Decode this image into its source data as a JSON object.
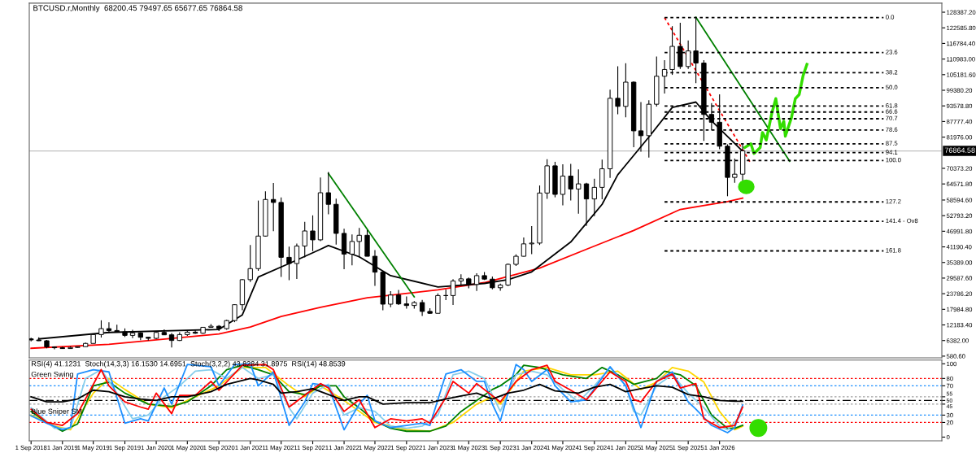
{
  "chart_data": [
    {
      "type": "candlestick",
      "title": "BTCUSD.r,Monthly  68200.45 79497.65 65677.65 76864.58",
      "x": [
        "2018-09",
        "2018-10",
        "2018-11",
        "2018-12",
        "2019-01",
        "2019-02",
        "2019-03",
        "2019-04",
        "2019-05",
        "2019-06",
        "2019-07",
        "2019-08",
        "2019-09",
        "2019-10",
        "2019-11",
        "2019-12",
        "2020-01",
        "2020-02",
        "2020-03",
        "2020-04",
        "2020-05",
        "2020-06",
        "2020-07",
        "2020-08",
        "2020-09",
        "2020-10",
        "2020-11",
        "2020-12",
        "2021-01",
        "2021-02",
        "2021-03",
        "2021-04",
        "2021-05",
        "2021-06",
        "2021-07",
        "2021-08",
        "2021-09",
        "2021-10",
        "2021-11",
        "2021-12",
        "2022-01",
        "2022-02",
        "2022-03",
        "2022-04",
        "2022-05",
        "2022-06",
        "2022-07",
        "2022-08",
        "2022-09",
        "2022-10",
        "2022-11",
        "2022-12",
        "2023-01",
        "2023-02",
        "2023-03",
        "2023-04",
        "2023-05",
        "2023-06",
        "2023-07",
        "2023-08",
        "2023-09",
        "2023-10",
        "2023-11",
        "2023-12",
        "2024-01",
        "2024-02",
        "2024-03",
        "2024-04",
        "2024-05",
        "2024-06",
        "2024-07",
        "2024-08",
        "2024-09",
        "2024-10",
        "2024-11",
        "2024-12",
        "2025-01",
        "2025-02",
        "2025-03",
        "2025-04",
        "2025-05",
        "2025-06",
        "2025-07",
        "2025-08",
        "2025-09",
        "2025-10",
        "2025-11",
        "2025-12",
        "2026-01",
        "2026-02",
        "2026-03",
        "2026-04"
      ],
      "ohlc": [
        [
          7000,
          7400,
          6100,
          6600
        ],
        [
          6600,
          7600,
          6200,
          6300
        ],
        [
          6300,
          6600,
          3500,
          4000
        ],
        [
          4000,
          4200,
          3100,
          3700
        ],
        [
          3700,
          4100,
          3300,
          3400
        ],
        [
          3400,
          4200,
          3400,
          3800
        ],
        [
          3800,
          4100,
          3700,
          4100
        ],
        [
          4100,
          5600,
          4100,
          5300
        ],
        [
          5300,
          9000,
          5300,
          8600
        ],
        [
          8600,
          13900,
          7500,
          10800
        ],
        [
          10800,
          13200,
          9100,
          10100
        ],
        [
          10100,
          12300,
          9300,
          9600
        ],
        [
          9600,
          10900,
          7700,
          8300
        ],
        [
          8300,
          10400,
          7300,
          9200
        ],
        [
          9200,
          9500,
          6500,
          7600
        ],
        [
          7600,
          7700,
          6400,
          7200
        ],
        [
          7200,
          9600,
          6900,
          9400
        ],
        [
          9400,
          10500,
          8400,
          8500
        ],
        [
          8500,
          9200,
          3800,
          6400
        ],
        [
          6400,
          9500,
          6200,
          8600
        ],
        [
          8600,
          10100,
          8100,
          9500
        ],
        [
          9500,
          10400,
          8900,
          9100
        ],
        [
          9100,
          11400,
          8900,
          11300
        ],
        [
          11300,
          12500,
          11100,
          11700
        ],
        [
          11700,
          12100,
          9900,
          10800
        ],
        [
          10800,
          14100,
          10400,
          13800
        ],
        [
          13800,
          19900,
          13200,
          19700
        ],
        [
          19700,
          29300,
          17600,
          29000
        ],
        [
          29000,
          41900,
          28100,
          33100
        ],
        [
          33100,
          58400,
          32300,
          45200
        ],
        [
          45200,
          61800,
          45000,
          58800
        ],
        [
          58800,
          64900,
          47000,
          57700
        ],
        [
          57700,
          59600,
          30000,
          37300
        ],
        [
          37300,
          41300,
          28800,
          35000
        ],
        [
          35000,
          42400,
          29300,
          41500
        ],
        [
          41500,
          50500,
          37300,
          47100
        ],
        [
          47100,
          52900,
          39600,
          43800
        ],
        [
          43800,
          67000,
          43300,
          61300
        ],
        [
          61300,
          69000,
          53300,
          57000
        ],
        [
          57000,
          59100,
          42000,
          46200
        ],
        [
          46200,
          47900,
          32900,
          38500
        ],
        [
          38500,
          45800,
          34300,
          43200
        ],
        [
          43200,
          48200,
          37200,
          45500
        ],
        [
          45500,
          47400,
          37700,
          37700
        ],
        [
          37700,
          40000,
          26700,
          31800
        ],
        [
          31800,
          31900,
          17600,
          19900
        ],
        [
          19900,
          24700,
          18800,
          23300
        ],
        [
          23300,
          25200,
          19600,
          20000
        ],
        [
          20000,
          22800,
          18200,
          19400
        ],
        [
          19400,
          21000,
          18200,
          20500
        ],
        [
          20500,
          21500,
          15500,
          17200
        ],
        [
          17200,
          18400,
          16300,
          16500
        ],
        [
          16500,
          23900,
          16500,
          23100
        ],
        [
          23100,
          25300,
          21400,
          23100
        ],
        [
          23100,
          29200,
          19600,
          28500
        ],
        [
          28500,
          31000,
          26900,
          29300
        ],
        [
          29300,
          29800,
          25800,
          27200
        ],
        [
          27200,
          31400,
          24800,
          30500
        ],
        [
          30500,
          31800,
          28900,
          29200
        ],
        [
          29200,
          30200,
          25400,
          26000
        ],
        [
          26000,
          27500,
          24900,
          27000
        ],
        [
          27000,
          35000,
          26600,
          34700
        ],
        [
          34700,
          38400,
          34100,
          37700
        ],
        [
          37700,
          44700,
          37600,
          42300
        ],
        [
          42300,
          48900,
          38500,
          42600
        ],
        [
          42600,
          64000,
          41900,
          61200
        ],
        [
          61200,
          73800,
          59000,
          71300
        ],
        [
          71300,
          72800,
          59600,
          60700
        ],
        [
          60700,
          71900,
          56600,
          67500
        ],
        [
          67500,
          72000,
          58400,
          62700
        ],
        [
          62700,
          70000,
          53500,
          64600
        ],
        [
          64600,
          65000,
          49000,
          59000
        ],
        [
          59000,
          66500,
          52600,
          63300
        ],
        [
          63300,
          73600,
          58900,
          70200
        ],
        [
          70200,
          99600,
          66800,
          96400
        ],
        [
          96400,
          108300,
          90500,
          93400
        ],
        [
          93400,
          109400,
          89300,
          102400
        ],
        [
          102400,
          102700,
          78200,
          84300
        ],
        [
          84300,
          95000,
          76600,
          82500
        ],
        [
          82500,
          95700,
          74400,
          94200
        ],
        [
          94200,
          111900,
          93300,
          104600
        ],
        [
          104600,
          110600,
          98200,
          107100
        ],
        [
          107100,
          123200,
          105100,
          115700
        ],
        [
          115700,
          124500,
          107300,
          108200
        ],
        [
          108200,
          117900,
          107300,
          114000
        ],
        [
          114000,
          126200,
          102000,
          109500
        ],
        [
          109500,
          110600,
          80600,
          90400
        ],
        [
          90400,
          94600,
          84500,
          87500
        ],
        [
          87500,
          97900,
          77500,
          78600
        ],
        [
          78600,
          79300,
          60000,
          67000
        ],
        [
          67000,
          74000,
          65000,
          68200
        ],
        [
          68200.45,
          79497.65,
          65677.65,
          76864.58
        ]
      ],
      "series": [
        {
          "type": "line",
          "color": "#ff0000",
          "line_style": "solid",
          "x": [
            "2018-09",
            "2019-07",
            "2020-09",
            "2021-01",
            "2021-05",
            "2021-10",
            "2022-04",
            "2023-01",
            "2023-07",
            "2024-02",
            "2024-08",
            "2025-02",
            "2025-08",
            "2026-02",
            "2026-04"
          ],
          "values": [
            3500,
            5000,
            8800,
            11400,
            15300,
            18700,
            22300,
            25200,
            27900,
            33300,
            40300,
            47300,
            55100,
            58000,
            59300
          ]
        },
        {
          "type": "line",
          "color": "#000000",
          "line_style": "solid",
          "x": [
            "2018-10",
            "2019-07",
            "2020-09",
            "2020-12",
            "2021-02",
            "2021-06",
            "2021-10",
            "2021-11",
            "2022-03",
            "2022-07",
            "2023-01",
            "2023-07",
            "2023-10",
            "2024-01",
            "2024-06",
            "2024-10",
            "2024-12",
            "2025-04",
            "2025-07",
            "2025-10",
            "2025-12",
            "2026-04"
          ],
          "values": [
            7000,
            9400,
            10500,
            15900,
            30000,
            35000,
            40300,
            41700,
            37500,
            30500,
            26300,
            27600,
            29000,
            31900,
            43000,
            57000,
            68000,
            82000,
            93000,
            95000,
            88000,
            76700
          ]
        },
        {
          "type": "line",
          "color": "#008000",
          "line_style": "solid",
          "x": [
            "2021-11",
            "2022-10"
          ],
          "values": [
            68500,
            22600
          ]
        },
        {
          "type": "line",
          "color": "#008000",
          "line_style": "solid",
          "x": [
            "2025-10",
            "2026-10"
          ],
          "values": [
            126500,
            73000
          ]
        },
        {
          "type": "line",
          "color": "#ff0000",
          "line_style": "dotted",
          "x": [
            "2025-06",
            "2026-05"
          ],
          "values": [
            126400,
            72500
          ]
        },
        {
          "type": "line",
          "color": "#33dd00",
          "line_style": "solid",
          "x": [
            "2026-04-09",
            "2026-05-03",
            "2026-05-15",
            "2026-06-08",
            "2026-06-17",
            "2026-07-02",
            "2026-07-23",
            "2026-08-08",
            "2026-08-17",
            "2026-08-26",
            "2026-09-08",
            "2026-09-14",
            "2026-10-08",
            "2026-10-23",
            "2026-11-07",
            "2026-11-22",
            "2026-12-07"
          ],
          "values": [
            78100,
            79500,
            75900,
            78100,
            83700,
            80900,
            90700,
            96300,
            90700,
            85100,
            87900,
            82300,
            89300,
            96300,
            97800,
            104800,
            109000
          ]
        },
        {
          "type": "line",
          "name": "0.0",
          "color": "#000000",
          "line_style": "dotted",
          "x": [
            "2025-06",
            "2027-10"
          ],
          "values": [
            126400,
            126400
          ]
        },
        {
          "type": "line",
          "name": "23.6",
          "color": "#000000",
          "line_style": "dotted",
          "x": [
            "2025-06",
            "2027-10"
          ],
          "values": [
            113400,
            113400
          ]
        },
        {
          "type": "line",
          "name": "38.2",
          "color": "#000000",
          "line_style": "dotted",
          "x": [
            "2025-06",
            "2027-10"
          ],
          "values": [
            105900,
            105900
          ]
        },
        {
          "type": "line",
          "name": "50.0",
          "color": "#000000",
          "line_style": "dotted",
          "x": [
            "2025-06",
            "2027-10"
          ],
          "values": [
            100300,
            100300
          ]
        },
        {
          "type": "line",
          "name": "61.8",
          "color": "#000000",
          "line_style": "dotted",
          "x": [
            "2025-06",
            "2027-10"
          ],
          "values": [
            93500,
            93500
          ]
        },
        {
          "type": "line",
          "name": "66.6",
          "color": "#000000",
          "line_style": "dotted",
          "x": [
            "2025-06",
            "2027-10"
          ],
          "values": [
            91300,
            91300
          ]
        },
        {
          "type": "line",
          "name": "70.7",
          "color": "#000000",
          "line_style": "dotted",
          "x": [
            "2025-06",
            "2027-10"
          ],
          "values": [
            88800,
            88800
          ]
        },
        {
          "type": "line",
          "name": "78.6",
          "color": "#000000",
          "line_style": "dotted",
          "x": [
            "2025-06",
            "2027-10"
          ],
          "values": [
            84600,
            84600
          ]
        },
        {
          "type": "line",
          "name": "87.5",
          "color": "#000000",
          "line_style": "dotted",
          "x": [
            "2025-06",
            "2027-10"
          ],
          "values": [
            79500,
            79500
          ]
        },
        {
          "type": "line",
          "name": "94.1",
          "color": "#000000",
          "line_style": "dotted",
          "x": [
            "2025-06",
            "2027-10"
          ],
          "values": [
            76200,
            76200
          ]
        },
        {
          "type": "line",
          "name": "100.0",
          "color": "#000000",
          "line_style": "dotted",
          "x": [
            "2025-06",
            "2027-10"
          ],
          "values": [
            73300,
            73300
          ]
        },
        {
          "type": "line",
          "name": "127.2",
          "color": "#000000",
          "line_style": "dotted",
          "x": [
            "2025-06",
            "2027-10"
          ],
          "values": [
            57900,
            57900
          ]
        },
        {
          "type": "line",
          "name": "141.4 - Ov8",
          "color": "#000000",
          "line_style": "dotted",
          "x": [
            "2025-06",
            "2027-10"
          ],
          "values": [
            50700,
            50700
          ]
        },
        {
          "type": "line",
          "name": "161.8",
          "color": "#000000",
          "line_style": "dotted",
          "x": [
            "2025-06",
            "2027-10"
          ],
          "values": [
            39700,
            39700
          ]
        }
      ],
      "ref_lines": [
        {
          "axis": "y",
          "value": 76864.58,
          "label": "76864.58",
          "color": "#c0c0c0",
          "line_style": "solid"
        }
      ],
      "xlim": [
        "2018-08-25",
        "2028-05-15"
      ],
      "ylim": [
        -60,
        131750
      ],
      "yticks": [
        {
          "value": 580.6,
          "label": "580.60"
        },
        {
          "value": 6382.0,
          "label": "6382.00"
        },
        {
          "value": 12183.4,
          "label": "12183.40"
        },
        {
          "value": 17984.8,
          "label": "17984.80"
        },
        {
          "value": 23786.2,
          "label": "23786.20"
        },
        {
          "value": 29587.6,
          "label": "29587.60"
        },
        {
          "value": 35389.0,
          "label": "35389.00"
        },
        {
          "value": 41190.4,
          "label": "41190.40"
        },
        {
          "value": 46991.8,
          "label": "46991.80"
        },
        {
          "value": 52793.2,
          "label": "52793.20"
        },
        {
          "value": 58594.6,
          "label": "58594.60"
        },
        {
          "value": 64571.8,
          "label": "64571.80"
        },
        {
          "value": 70373.2,
          "label": "70373.20"
        },
        {
          "value": 81976.0,
          "label": "81976.00"
        },
        {
          "value": 87777.4,
          "label": "87777.40"
        },
        {
          "value": 93578.8,
          "label": "93578.80"
        },
        {
          "value": 99380.2,
          "label": "99380.20"
        },
        {
          "value": 105181.6,
          "label": "105181.60"
        },
        {
          "value": 110983.0,
          "label": "110983.00"
        },
        {
          "value": 116784.4,
          "label": "116784.40"
        },
        {
          "value": 122585.8,
          "label": "122585.80"
        },
        {
          "value": 128387.2,
          "label": "128387.20"
        }
      ],
      "tick_labels": "y",
      "grid": false
    },
    {
      "type": "line",
      "annotations": [
        "RSI(4) 41.1231  Stoch(14,3,3) 16.1530 14.6951  Stoch(3,2,2) 43.8284 31.8975  RSI(14) 48.8539",
        "Green Swing",
        "Blue Sniper SM"
      ],
      "series": [
        {
          "color": "#ffd700",
          "x": [
            "2018-09",
            "2018-12",
            "2019-02",
            "2019-05",
            "2019-07",
            "2019-09",
            "2019-12",
            "2020-03",
            "2020-06",
            "2020-09",
            "2020-12",
            "2021-03",
            "2021-06",
            "2021-08",
            "2021-10",
            "2022-01",
            "2022-05",
            "2022-09",
            "2022-12",
            "2023-03",
            "2023-06",
            "2023-08",
            "2023-09",
            "2023-12",
            "2024-03",
            "2024-06",
            "2024-09",
            "2024-12",
            "2025-03",
            "2025-05",
            "2025-07",
            "2025-09",
            "2025-11",
            "2026-01",
            "2026-03",
            "2026-04"
          ],
          "values": [
            30,
            15,
            10,
            60,
            80,
            65,
            45,
            40,
            55,
            70,
            95,
            95,
            70,
            55,
            70,
            50,
            20,
            10,
            8,
            20,
            45,
            55,
            45,
            90,
            95,
            85,
            85,
            90,
            65,
            75,
            95,
            90,
            75,
            35,
            10,
            15
          ]
        },
        {
          "color": "#008000",
          "x": [
            "2018-09",
            "2018-11",
            "2019-01",
            "2019-03",
            "2019-05",
            "2019-07",
            "2019-09",
            "2019-12",
            "2020-03",
            "2020-05",
            "2020-08",
            "2020-10",
            "2020-12",
            "2021-02",
            "2021-04",
            "2021-06",
            "2021-08",
            "2021-10",
            "2021-12",
            "2022-01",
            "2022-03",
            "2022-05",
            "2022-07",
            "2022-09",
            "2022-12",
            "2023-02",
            "2023-04",
            "2023-06",
            "2023-08",
            "2023-09",
            "2023-11",
            "2023-12",
            "2024-02",
            "2024-05",
            "2024-08",
            "2024-10",
            "2024-12",
            "2025-02",
            "2025-05",
            "2025-06",
            "2025-08",
            "2025-10",
            "2025-12",
            "2026-02",
            "2026-03",
            "2026-04"
          ],
          "values": [
            35,
            20,
            8,
            18,
            70,
            75,
            60,
            45,
            42,
            48,
            70,
            92,
            98,
            92,
            85,
            62,
            58,
            70,
            70,
            55,
            40,
            22,
            12,
            8,
            8,
            15,
            35,
            50,
            65,
            70,
            85,
            98,
            95,
            85,
            80,
            95,
            85,
            72,
            80,
            90,
            85,
            70,
            30,
            12,
            12,
            16
          ]
        },
        {
          "color": "#87ceeb",
          "x": [
            "2018-09",
            "2018-12",
            "2019-02",
            "2019-04",
            "2019-06",
            "2019-08",
            "2019-10",
            "2019-12",
            "2020-02",
            "2020-04",
            "2020-06",
            "2020-08",
            "2020-10",
            "2020-12",
            "2021-02",
            "2021-04",
            "2021-06",
            "2021-07",
            "2021-09",
            "2021-11",
            "2022-01",
            "2022-03",
            "2022-05",
            "2022-07",
            "2022-09",
            "2022-11",
            "2023-01",
            "2023-03",
            "2023-05",
            "2023-07",
            "2023-09",
            "2023-11",
            "2024-01",
            "2024-03",
            "2024-05",
            "2024-07",
            "2024-09",
            "2024-11",
            "2025-01",
            "2025-02",
            "2025-03",
            "2025-05",
            "2025-07",
            "2025-09",
            "2025-11",
            "2026-01",
            "2026-02",
            "2026-04"
          ],
          "values": [
            40,
            12,
            12,
            80,
            92,
            60,
            25,
            30,
            55,
            70,
            90,
            92,
            80,
            95,
            80,
            85,
            40,
            25,
            60,
            72,
            30,
            40,
            35,
            15,
            12,
            15,
            30,
            85,
            90,
            80,
            35,
            85,
            90,
            85,
            65,
            48,
            70,
            95,
            70,
            35,
            30,
            70,
            85,
            60,
            40,
            15,
            10,
            32
          ]
        },
        {
          "color": "#1e90ff",
          "x": [
            "2018-09",
            "2018-11",
            "2019-01",
            "2019-02",
            "2019-03",
            "2019-05",
            "2019-07",
            "2019-09",
            "2019-11",
            "2019-12",
            "2020-02",
            "2020-03",
            "2020-05",
            "2020-08",
            "2020-09",
            "2020-11",
            "2021-01",
            "2021-02",
            "2021-04",
            "2021-06",
            "2021-08",
            "2021-09",
            "2021-11",
            "2022-01",
            "2022-03",
            "2022-04",
            "2022-05",
            "2022-07",
            "2022-09",
            "2022-11",
            "2022-12",
            "2023-02",
            "2023-04",
            "2023-06",
            "2023-07",
            "2023-08",
            "2023-09",
            "2023-11",
            "2023-12",
            "2024-01",
            "2024-03",
            "2024-04",
            "2024-06",
            "2024-08",
            "2024-11",
            "2025-01",
            "2025-03",
            "2025-05",
            "2025-07",
            "2025-09",
            "2025-10",
            "2025-12",
            "2026-02",
            "2026-03",
            "2026-04"
          ],
          "values": [
            29,
            19,
            10,
            13,
            86,
            92,
            89,
            19,
            25,
            22,
            67,
            45,
            99,
            96,
            70,
            99,
            100,
            70,
            89,
            16,
            48,
            73,
            70,
            10,
            45,
            57,
            22,
            13,
            16,
            19,
            16,
            86,
            92,
            76,
            76,
            45,
            22,
            99,
            92,
            76,
            92,
            70,
            48,
            51,
            96,
            70,
            13,
            76,
            89,
            48,
            38,
            16,
            6,
            13,
            44
          ]
        },
        {
          "color": "#ff0000",
          "x": [
            "2018-09",
            "2018-11",
            "2019-01",
            "2019-03",
            "2019-06",
            "2019-07",
            "2019-09",
            "2019-11",
            "2019-12",
            "2020-01",
            "2020-03",
            "2020-04",
            "2020-06",
            "2020-08",
            "2020-09",
            "2020-12",
            "2021-03",
            "2021-04",
            "2021-06",
            "2021-08",
            "2021-10",
            "2021-11",
            "2022-01",
            "2022-03",
            "2022-05",
            "2022-07",
            "2022-09",
            "2022-11",
            "2022-12",
            "2023-02",
            "2023-03",
            "2023-05",
            "2023-06",
            "2023-09",
            "2023-11",
            "2024-01",
            "2024-03",
            "2024-04",
            "2024-06",
            "2024-08",
            "2024-11",
            "2025-01",
            "2025-02",
            "2025-03",
            "2025-05",
            "2025-07",
            "2025-08",
            "2025-10",
            "2025-11",
            "2026-01",
            "2026-03",
            "2026-04"
          ],
          "values": [
            38,
            20,
            16,
            32,
            92,
            70,
            48,
            41,
            38,
            60,
            32,
            57,
            57,
            76,
            64,
            98,
            99,
            92,
            41,
            57,
            73,
            67,
            35,
            51,
            13,
            25,
            22,
            25,
            19,
            54,
            76,
            60,
            73,
            48,
            76,
            92,
            98,
            76,
            64,
            51,
            89,
            76,
            51,
            48,
            76,
            86,
            67,
            73,
            25,
            13,
            16,
            41
          ]
        },
        {
          "color": "#000000",
          "x": [
            "2018-09",
            "2018-11",
            "2019-01",
            "2019-03",
            "2019-05",
            "2019-07",
            "2019-09",
            "2019-11",
            "2020-01",
            "2020-03",
            "2020-05",
            "2020-08",
            "2020-10",
            "2021-01",
            "2021-02",
            "2021-04",
            "2021-05",
            "2021-07",
            "2021-09",
            "2021-11",
            "2022-01",
            "2022-03",
            "2022-04",
            "2022-06",
            "2022-09",
            "2022-12",
            "2023-02",
            "2023-04",
            "2023-06",
            "2023-08",
            "2023-10",
            "2023-12",
            "2024-02",
            "2024-04",
            "2024-07",
            "2024-09",
            "2024-11",
            "2025-01",
            "2025-03",
            "2025-05",
            "2025-07",
            "2025-09",
            "2025-11",
            "2026-01",
            "2026-03",
            "2026-04"
          ],
          "values": [
            55,
            48,
            48,
            52,
            64,
            62,
            55,
            52,
            50,
            55,
            55,
            62,
            72,
            80,
            78,
            72,
            60,
            62,
            66,
            58,
            50,
            55,
            55,
            45,
            47,
            47,
            52,
            56,
            60,
            52,
            60,
            64,
            72,
            63,
            60,
            68,
            72,
            62,
            66,
            70,
            68,
            58,
            55,
            50,
            49,
            49
          ]
        }
      ],
      "ref_lines": [
        {
          "axis": "y",
          "value": 80,
          "color": "#ff0000",
          "line_style": "dotted"
        },
        {
          "axis": "y",
          "value": 70,
          "color": "#1e90ff",
          "line_style": "dotted"
        },
        {
          "axis": "y",
          "value": 55,
          "color": "#a0a0a0",
          "line_style": "dotted"
        },
        {
          "axis": "y",
          "value": 50,
          "color": "#000000",
          "line_style": "dashed"
        },
        {
          "axis": "y",
          "value": 45,
          "color": "#a0a0a0",
          "line_style": "dotted"
        },
        {
          "axis": "y",
          "value": 30,
          "color": "#1e90ff",
          "line_style": "dotted"
        },
        {
          "axis": "y",
          "value": 20,
          "color": "#ff0000",
          "line_style": "dotted"
        }
      ],
      "xlim": [
        "2018-08-25",
        "2028-05-15"
      ],
      "xticks": [
        {
          "value": "2018-09-01",
          "label": "1 Sep 2018"
        },
        {
          "value": "2019-01-01",
          "label": "1 Jan 2019"
        },
        {
          "value": "2019-05-01",
          "label": "1 May 2019"
        },
        {
          "value": "2019-09-01",
          "label": "1 Sep 2019"
        },
        {
          "value": "2020-01-01",
          "label": "1 Jan 2020"
        },
        {
          "value": "2020-05-01",
          "label": "1 May 2020"
        },
        {
          "value": "2020-09-01",
          "label": "1 Sep 2020"
        },
        {
          "value": "2021-01-01",
          "label": "1 Jan 2021"
        },
        {
          "value": "2021-05-01",
          "label": "1 May 2021"
        },
        {
          "value": "2021-09-01",
          "label": "1 Sep 2021"
        },
        {
          "value": "2022-01-01",
          "label": "1 Jan 2022"
        },
        {
          "value": "2022-05-01",
          "label": "1 May 2022"
        },
        {
          "value": "2022-09-01",
          "label": "1 Sep 2022"
        },
        {
          "value": "2023-01-01",
          "label": "1 Jan 2023"
        },
        {
          "value": "2023-05-01",
          "label": "1 May 2023"
        },
        {
          "value": "2023-09-01",
          "label": "1 Sep 2023"
        },
        {
          "value": "2024-01-01",
          "label": "1 Jan 2024"
        },
        {
          "value": "2024-05-01",
          "label": "1 May 2024"
        },
        {
          "value": "2024-09-01",
          "label": "1 Sep 2024"
        },
        {
          "value": "2025-01-01",
          "label": "1 Jan 2025"
        },
        {
          "value": "2025-05-01",
          "label": "1 May 2025"
        },
        {
          "value": "2025-09-01",
          "label": "1 Sep 2025"
        },
        {
          "value": "2026-01-01",
          "label": "1 Jan 2026"
        }
      ],
      "ylim": [
        -5,
        105
      ],
      "yticks": [
        0,
        20,
        30,
        45,
        50,
        55,
        70,
        80,
        100
      ],
      "grid": false
    }
  ]
}
